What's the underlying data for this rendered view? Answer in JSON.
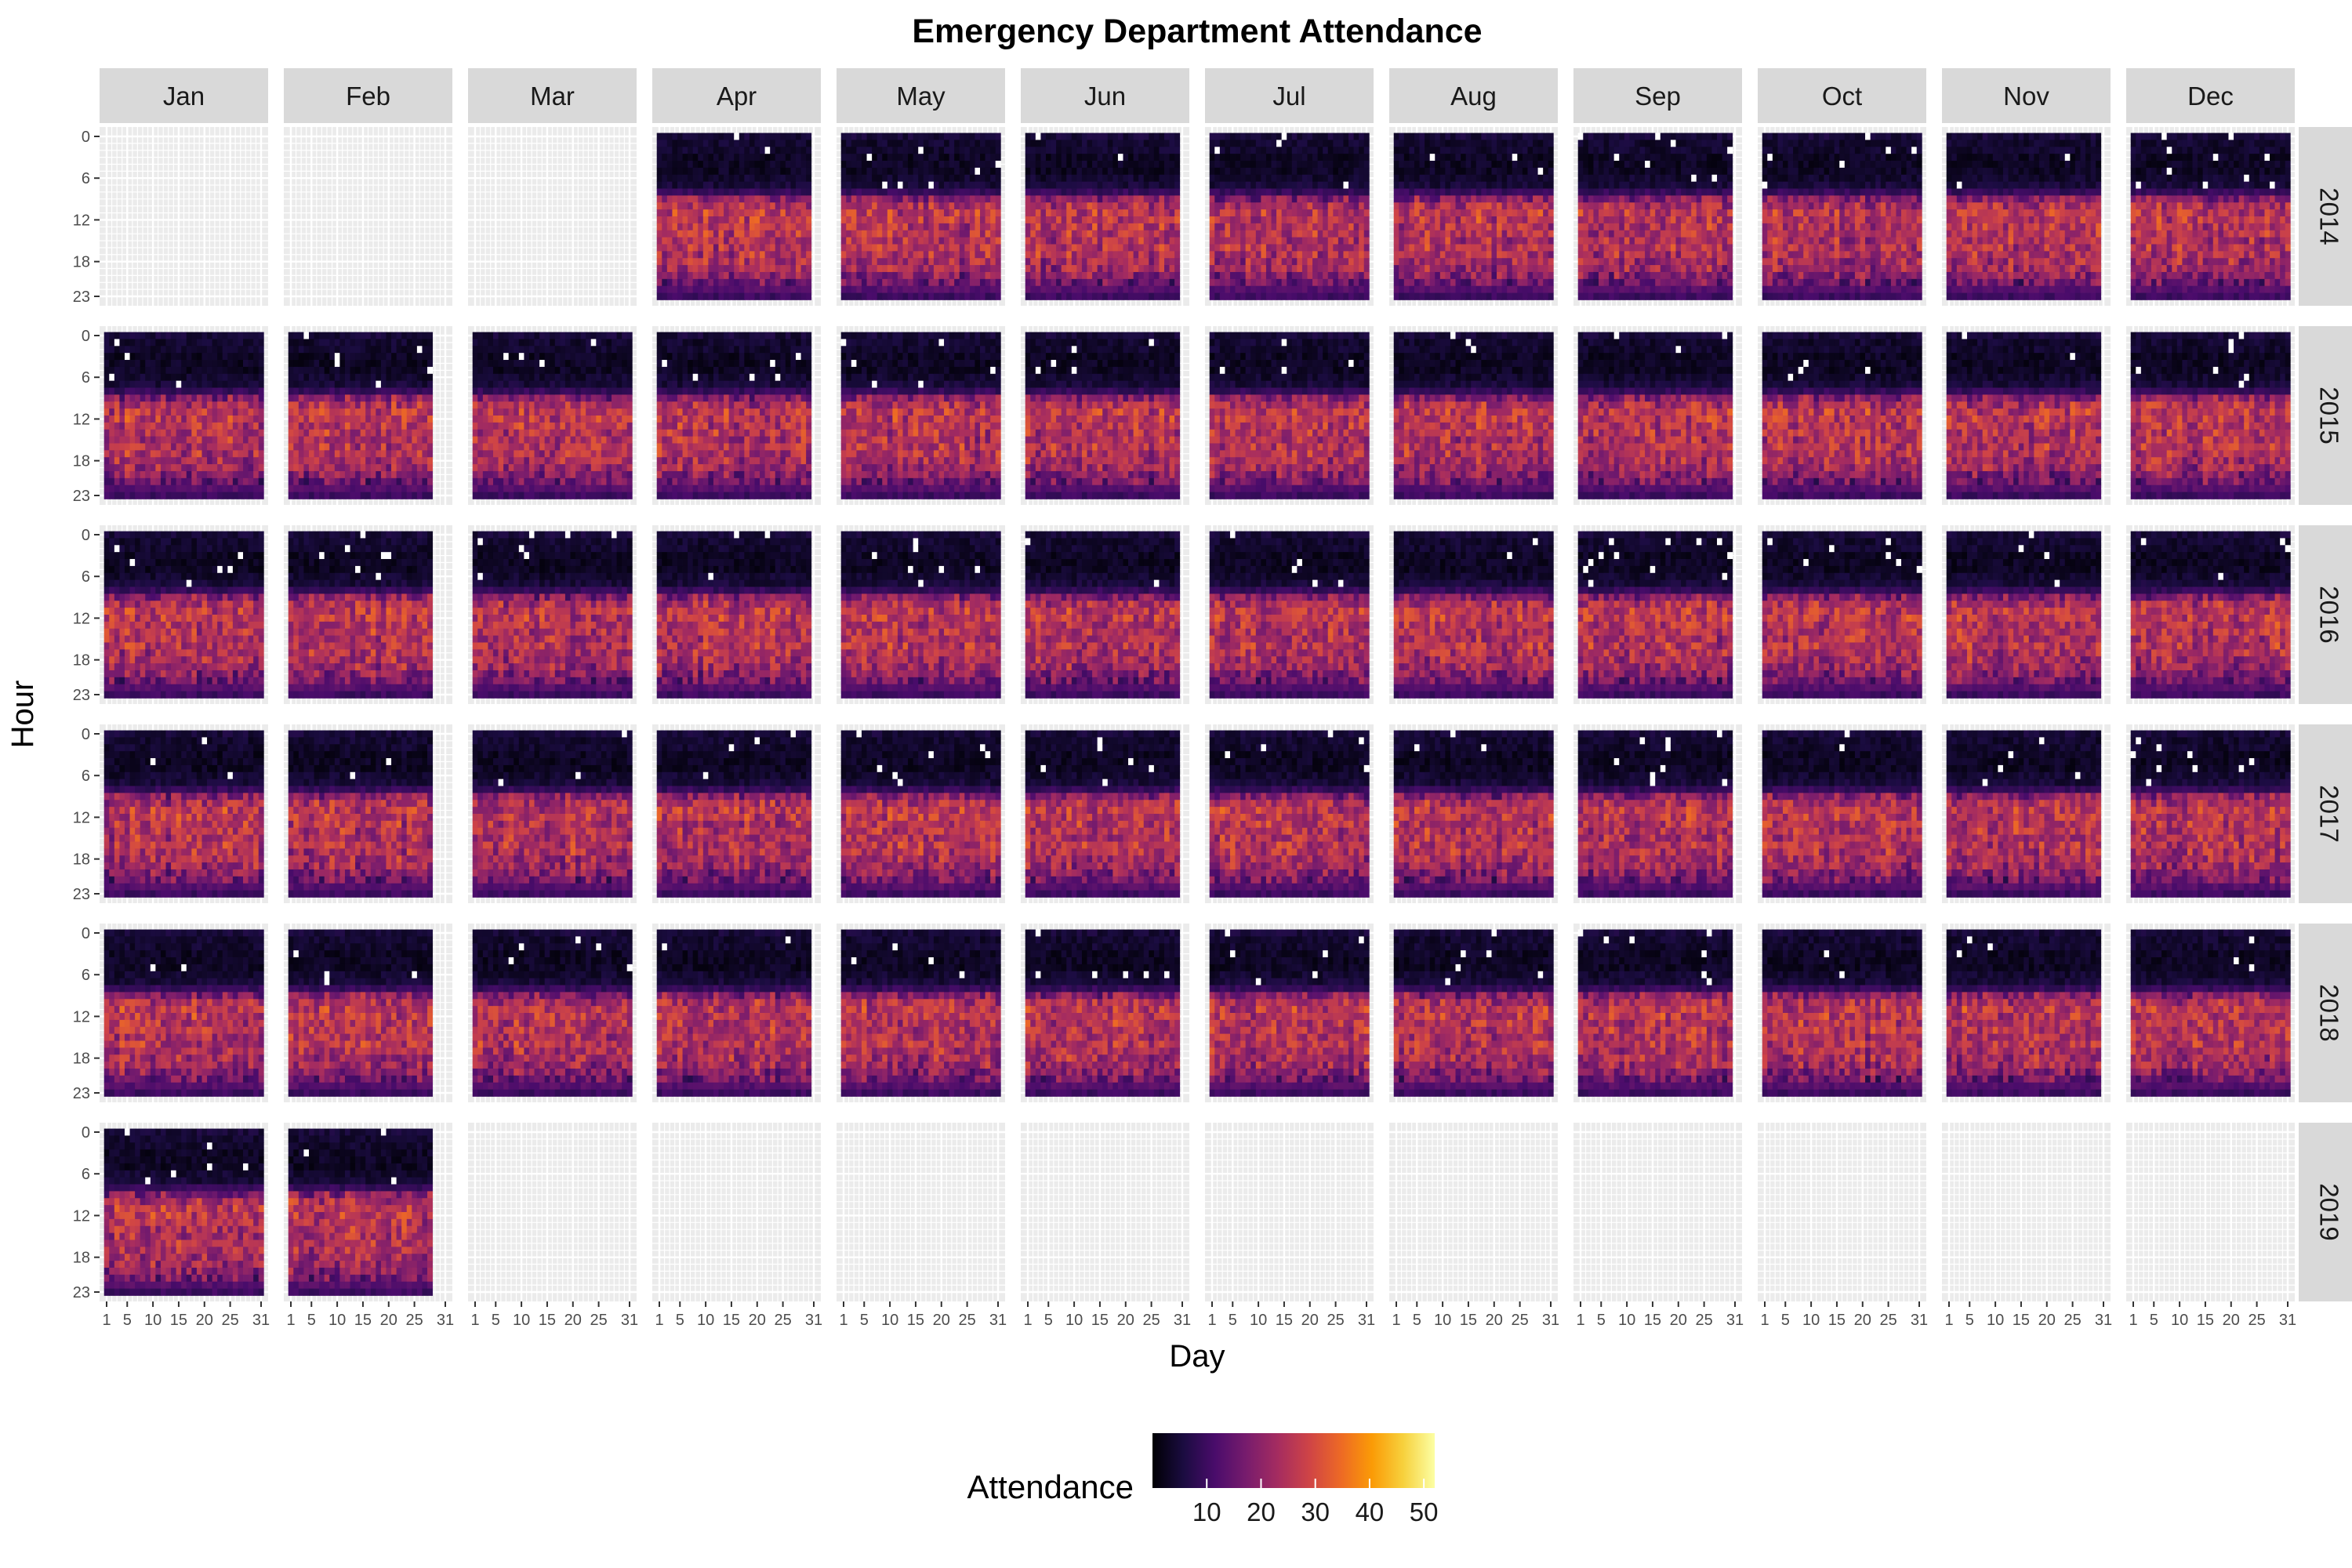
{
  "chart_data": {
    "type": "heatmap",
    "title": "Emergency Department Attendance",
    "xlabel": "Day",
    "ylabel": "Hour",
    "facet_columns": [
      "Jan",
      "Feb",
      "Mar",
      "Apr",
      "May",
      "Jun",
      "Jul",
      "Aug",
      "Sep",
      "Oct",
      "Nov",
      "Dec"
    ],
    "facet_rows": [
      "2014",
      "2015",
      "2016",
      "2017",
      "2018",
      "2019"
    ],
    "x_ticks": [
      "1",
      "5",
      "10",
      "15",
      "20",
      "25",
      "31"
    ],
    "y_ticks": [
      "0",
      "6",
      "12",
      "18",
      "23"
    ],
    "x_range": [
      1,
      31
    ],
    "y_range": [
      0,
      23
    ],
    "days_in_month": [
      31,
      28,
      31,
      30,
      31,
      30,
      31,
      31,
      30,
      31,
      30,
      31
    ],
    "data_period": {
      "start": "2014-04",
      "end": "2019-02"
    },
    "typical_attendance_by_hour": [
      5,
      4,
      4,
      3,
      3,
      3,
      4,
      5,
      9,
      19,
      24,
      26,
      26,
      25,
      25,
      24,
      25,
      24,
      23,
      22,
      19,
      16,
      13,
      10
    ],
    "missing_marker_color": "#ffffff",
    "legend": {
      "title": "Attendance",
      "ticks": [
        "10",
        "20",
        "30",
        "40",
        "50"
      ],
      "range": [
        0,
        52
      ],
      "position": "bottom",
      "colormap": "inferno"
    },
    "colors": {
      "panel_background": "#ebebeb",
      "grid": "#ffffff",
      "strip_background": "#d9d9d9",
      "gradient_stops": [
        "#000004",
        "#1b0c41",
        "#4a0c6b",
        "#781c6d",
        "#a52c60",
        "#cf4446",
        "#ed6925",
        "#fb9b06",
        "#f7d13d",
        "#fcffa4"
      ]
    }
  }
}
